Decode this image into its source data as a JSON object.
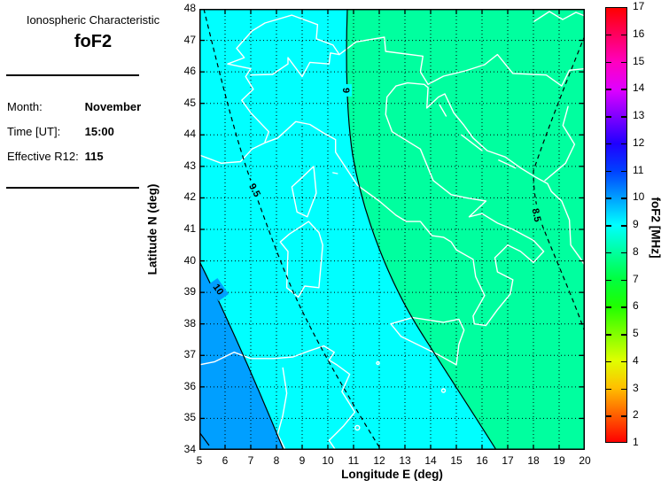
{
  "panel": {
    "title": "Ionospheric Characteristic",
    "parameter": "foF2",
    "fields": [
      {
        "label": "Month:",
        "value": "November"
      },
      {
        "label": "Time [UT]:",
        "value": "15:00"
      },
      {
        "label": "Effective R12:",
        "value": "115"
      }
    ]
  },
  "chart_data": {
    "type": "heatmap",
    "subtype": "filled contour map of foF2 over Italy and surrounding region",
    "title": "foF2",
    "xlabel": "Longitude E (deg)",
    "ylabel": "Latitude N (deg)",
    "xlim": [
      5,
      20
    ],
    "ylim": [
      34,
      48
    ],
    "xticks": [
      5,
      6,
      7,
      8,
      9,
      10,
      11,
      12,
      13,
      14,
      15,
      16,
      17,
      18,
      19,
      20
    ],
    "yticks": [
      34,
      35,
      36,
      37,
      38,
      39,
      40,
      41,
      42,
      43,
      44,
      45,
      46,
      47,
      48
    ],
    "grid": true,
    "colorbar": {
      "label": "foF2 [MHz]",
      "min": 1,
      "max": 17,
      "ticks": [
        1,
        2,
        3,
        4,
        5,
        6,
        7,
        8,
        9,
        10,
        11,
        12,
        13,
        14,
        15,
        16,
        17
      ],
      "colormap": "hsv rainbow: red(1) - yellow(4) - green(7) - cyan(9.5) - blue(12) - magenta(15) - red(17)"
    },
    "contours_MHz": [
      {
        "level": 10.5,
        "style": "solid",
        "label": "",
        "note": "small clip at bottom-left corner near 5E/34.3N"
      },
      {
        "level": 10,
        "style": "solid",
        "label": "10",
        "note": "from left edge at 40N down to bottom edge at 8.3E"
      },
      {
        "level": 9.5,
        "style": "dashed",
        "label": "9.5",
        "note": "from top edge at 5.2E down to bottom edge at 11.2E"
      },
      {
        "level": 9,
        "style": "solid",
        "label": "9",
        "note": "from top edge at 10.7E down to bottom edge at 16.5E"
      },
      {
        "level": 8.5,
        "style": "dashed",
        "label": "8.5",
        "note": "enters right edge near 47N, bulges west to ~17.9E near 42N, exits right edge near 37.7N"
      }
    ],
    "regions": [
      {
        "band_MHz": "8-9",
        "color": "#00FF9F"
      },
      {
        "band_MHz": "9-10",
        "color": "#00FFFF"
      },
      {
        "band_MHz": "10-11",
        "color": "#009FFF"
      }
    ],
    "map_overlay": "white coastlines and borders: Italy, Alps, Corsica, Sardinia, Sicily, Balkan coast, Tunisia/Algeria"
  }
}
